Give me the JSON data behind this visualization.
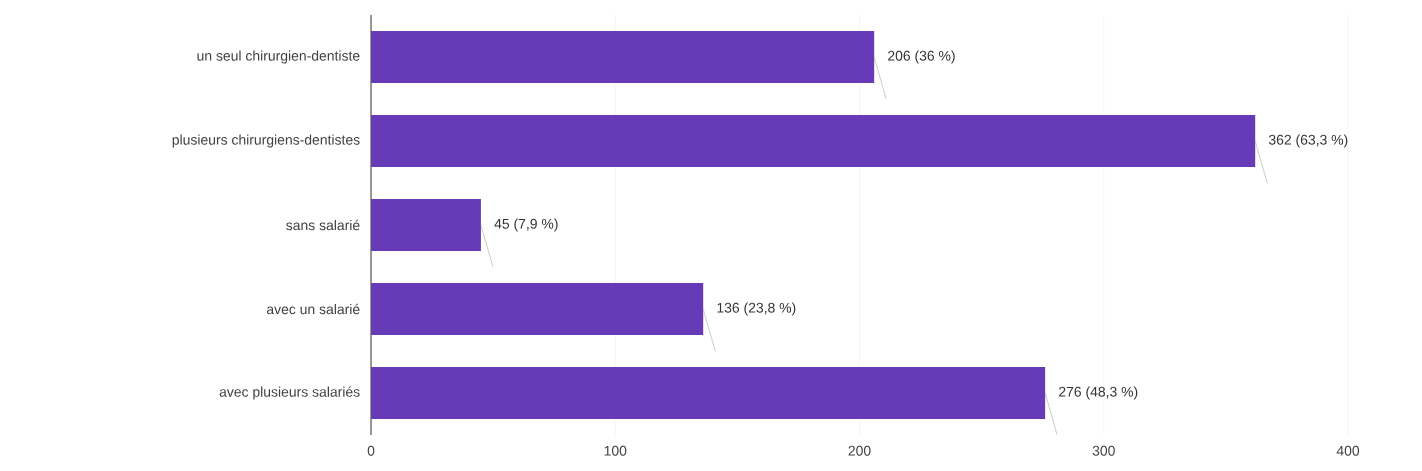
{
  "chart_data": {
    "type": "bar",
    "orientation": "horizontal",
    "categories": [
      "un seul chirurgien-dentiste",
      "plusieurs chirurgiens-dentistes",
      "sans salarié",
      "avec un salarié",
      "avec plusieurs salariés"
    ],
    "values": [
      206,
      362,
      45,
      136,
      276
    ],
    "value_labels": [
      "206 (36 %)",
      "362 (63,3 %)",
      "45 (7,9 %)",
      "136 (23,8 %)",
      "276 (48,3 %)"
    ],
    "color": "#673ab7",
    "xlim": [
      0,
      400
    ],
    "xticks": [
      0,
      100,
      200,
      300,
      400
    ],
    "grid": "x"
  }
}
